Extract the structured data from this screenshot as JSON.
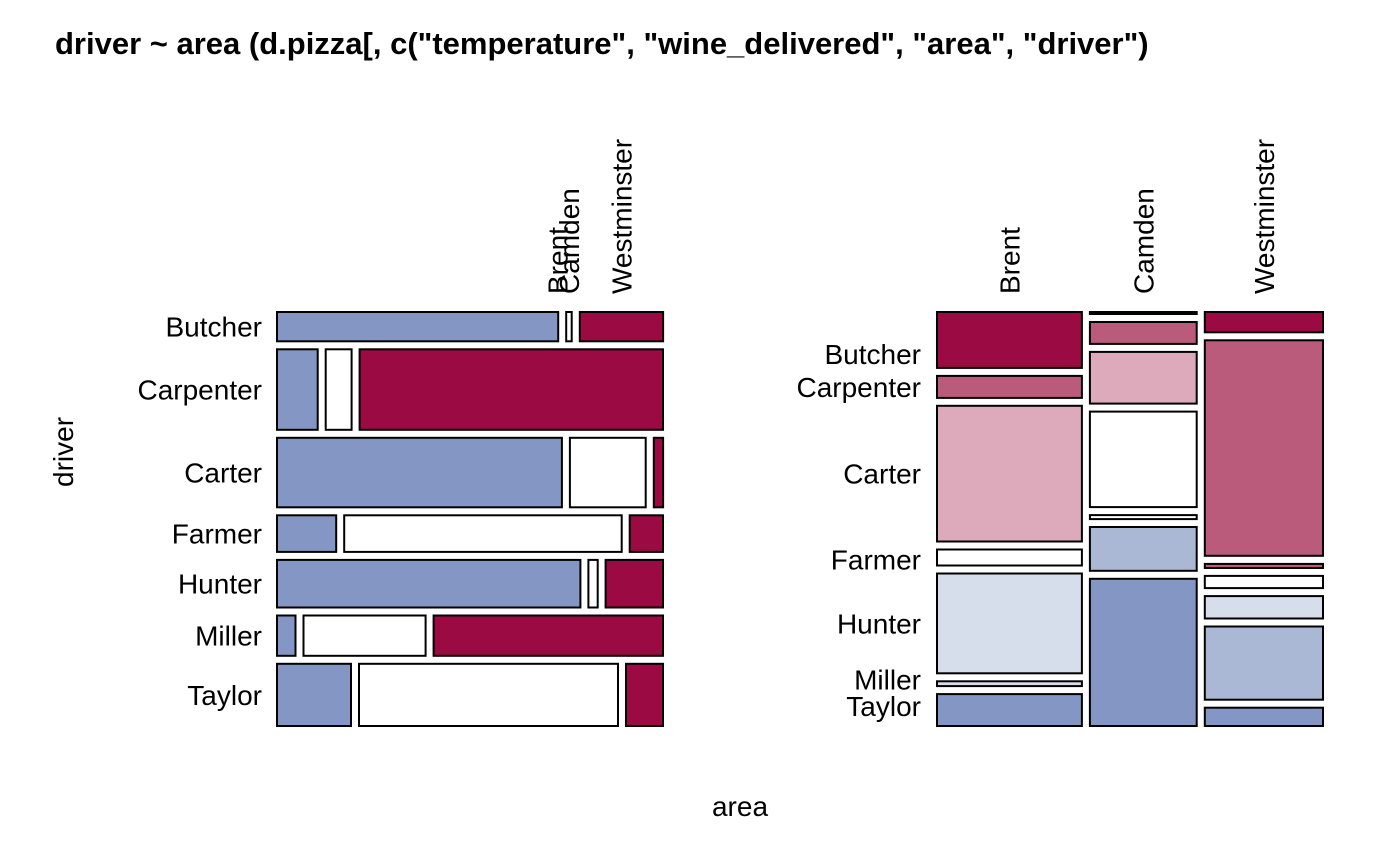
{
  "title": "driver ~ area (d.pizza[, c(\"temperature\", \"wine_delivered\", \"area\", \"driver\")",
  "xlabel": "area",
  "ylabel": "driver",
  "colors": {
    "blue_strong": "#8497C4",
    "blue_mid": "#ABB8D5",
    "blue_light": "#D7DEEB",
    "white": "#FFFFFF",
    "red_light": "#DDAABB",
    "red_mid": "#BB5B7C",
    "red_strong": "#9B0A42"
  },
  "chart_data": [
    {
      "type": "mosaic",
      "title": "",
      "layout": "rows",
      "row_label": "driver",
      "col_label": "area",
      "rows": [
        "Butcher",
        "Carpenter",
        "Carter",
        "Farmer",
        "Hunter",
        "Miller",
        "Taylor"
      ],
      "columns": [
        "Brent",
        "Camden",
        "Westminster"
      ],
      "row_shares": [
        0.08,
        0.22,
        0.19,
        0.1,
        0.13,
        0.11,
        0.17
      ],
      "cells": [
        [
          {
            "share": 0.76,
            "fill": "blue_strong"
          },
          {
            "share": 0.015,
            "fill": "white"
          },
          {
            "share": 0.225,
            "fill": "red_strong"
          }
        ],
        [
          {
            "share": 0.11,
            "fill": "blue_strong"
          },
          {
            "share": 0.07,
            "fill": "white"
          },
          {
            "share": 0.82,
            "fill": "red_strong"
          }
        ],
        [
          {
            "share": 0.77,
            "fill": "blue_strong"
          },
          {
            "share": 0.205,
            "fill": "white"
          },
          {
            "share": 0.025,
            "fill": "red_strong"
          }
        ],
        [
          {
            "share": 0.16,
            "fill": "blue_strong"
          },
          {
            "share": 0.75,
            "fill": "white"
          },
          {
            "share": 0.09,
            "fill": "red_strong"
          }
        ],
        [
          {
            "share": 0.82,
            "fill": "blue_strong"
          },
          {
            "share": 0.025,
            "fill": "white"
          },
          {
            "share": 0.155,
            "fill": "red_strong"
          }
        ],
        [
          {
            "share": 0.05,
            "fill": "blue_strong"
          },
          {
            "share": 0.33,
            "fill": "white"
          },
          {
            "share": 0.62,
            "fill": "red_strong"
          }
        ],
        [
          {
            "share": 0.2,
            "fill": "blue_strong"
          },
          {
            "share": 0.7,
            "fill": "white"
          },
          {
            "share": 0.1,
            "fill": "red_strong"
          }
        ]
      ]
    },
    {
      "type": "mosaic",
      "title": "",
      "layout": "columns",
      "row_label": "driver",
      "col_label": "area",
      "columns": [
        "Brent",
        "Camden",
        "Westminster"
      ],
      "rows": [
        "Butcher",
        "Carpenter",
        "Carter",
        "Farmer",
        "Hunter",
        "Miller",
        "Taylor"
      ],
      "col_shares": [
        0.38,
        0.28,
        0.31
      ],
      "cells": [
        [
          {
            "share": 0.14,
            "fill": "red_strong"
          },
          {
            "share": 0.055,
            "fill": "red_mid"
          },
          {
            "share": 0.34,
            "fill": "red_light"
          },
          {
            "share": 0.04,
            "fill": "white"
          },
          {
            "share": 0.25,
            "fill": "blue_light"
          },
          {
            "share": 0.012,
            "fill": "blue_light"
          },
          {
            "share": 0.08,
            "fill": "blue_strong"
          }
        ],
        [
          {
            "share": 0.005,
            "fill": "white"
          },
          {
            "share": 0.055,
            "fill": "red_mid"
          },
          {
            "share": 0.13,
            "fill": "red_light"
          },
          {
            "share": 0.24,
            "fill": "white"
          },
          {
            "share": 0.01,
            "fill": "white"
          },
          {
            "share": 0.11,
            "fill": "blue_mid"
          },
          {
            "share": 0.37,
            "fill": "blue_strong"
          }
        ],
        [
          {
            "share": 0.05,
            "fill": "red_strong"
          },
          {
            "share": 0.53,
            "fill": "red_mid"
          },
          {
            "share": 0.01,
            "fill": "red_mid"
          },
          {
            "share": 0.03,
            "fill": "white"
          },
          {
            "share": 0.055,
            "fill": "blue_light"
          },
          {
            "share": 0.18,
            "fill": "blue_mid"
          },
          {
            "share": 0.045,
            "fill": "blue_strong"
          }
        ]
      ]
    }
  ]
}
